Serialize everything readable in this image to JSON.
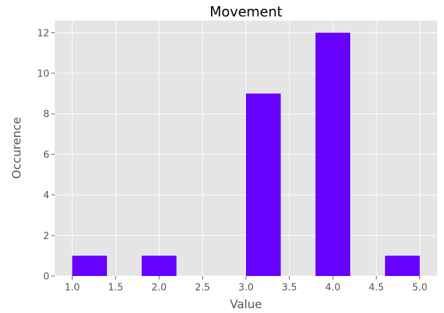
{
  "chart_data": {
    "type": "bar",
    "title": "Movement",
    "xlabel": "Value",
    "ylabel": "Occurence",
    "bins": [
      {
        "start": 1.0,
        "end": 1.4,
        "value": 1
      },
      {
        "start": 1.4,
        "end": 1.8,
        "value": 0
      },
      {
        "start": 1.8,
        "end": 2.2,
        "value": 1
      },
      {
        "start": 2.2,
        "end": 2.6,
        "value": 0
      },
      {
        "start": 2.6,
        "end": 3.0,
        "value": 0
      },
      {
        "start": 3.0,
        "end": 3.4,
        "value": 9
      },
      {
        "start": 3.4,
        "end": 3.8,
        "value": 0
      },
      {
        "start": 3.8,
        "end": 4.2,
        "value": 12
      },
      {
        "start": 4.2,
        "end": 4.6,
        "value": 0
      },
      {
        "start": 4.6,
        "end": 5.0,
        "value": 1
      }
    ],
    "xlim": [
      0.8,
      5.2
    ],
    "ylim": [
      0,
      12.6
    ],
    "xticks": [
      "1.0",
      "1.5",
      "2.0",
      "2.5",
      "3.0",
      "3.5",
      "4.0",
      "4.5",
      "5.0"
    ],
    "yticks": [
      "0",
      "2",
      "4",
      "6",
      "8",
      "10",
      "12"
    ],
    "grid": true,
    "bar_color": "#6600ff",
    "background_color": "#e5e5e5",
    "grid_color": "#ffffff"
  }
}
